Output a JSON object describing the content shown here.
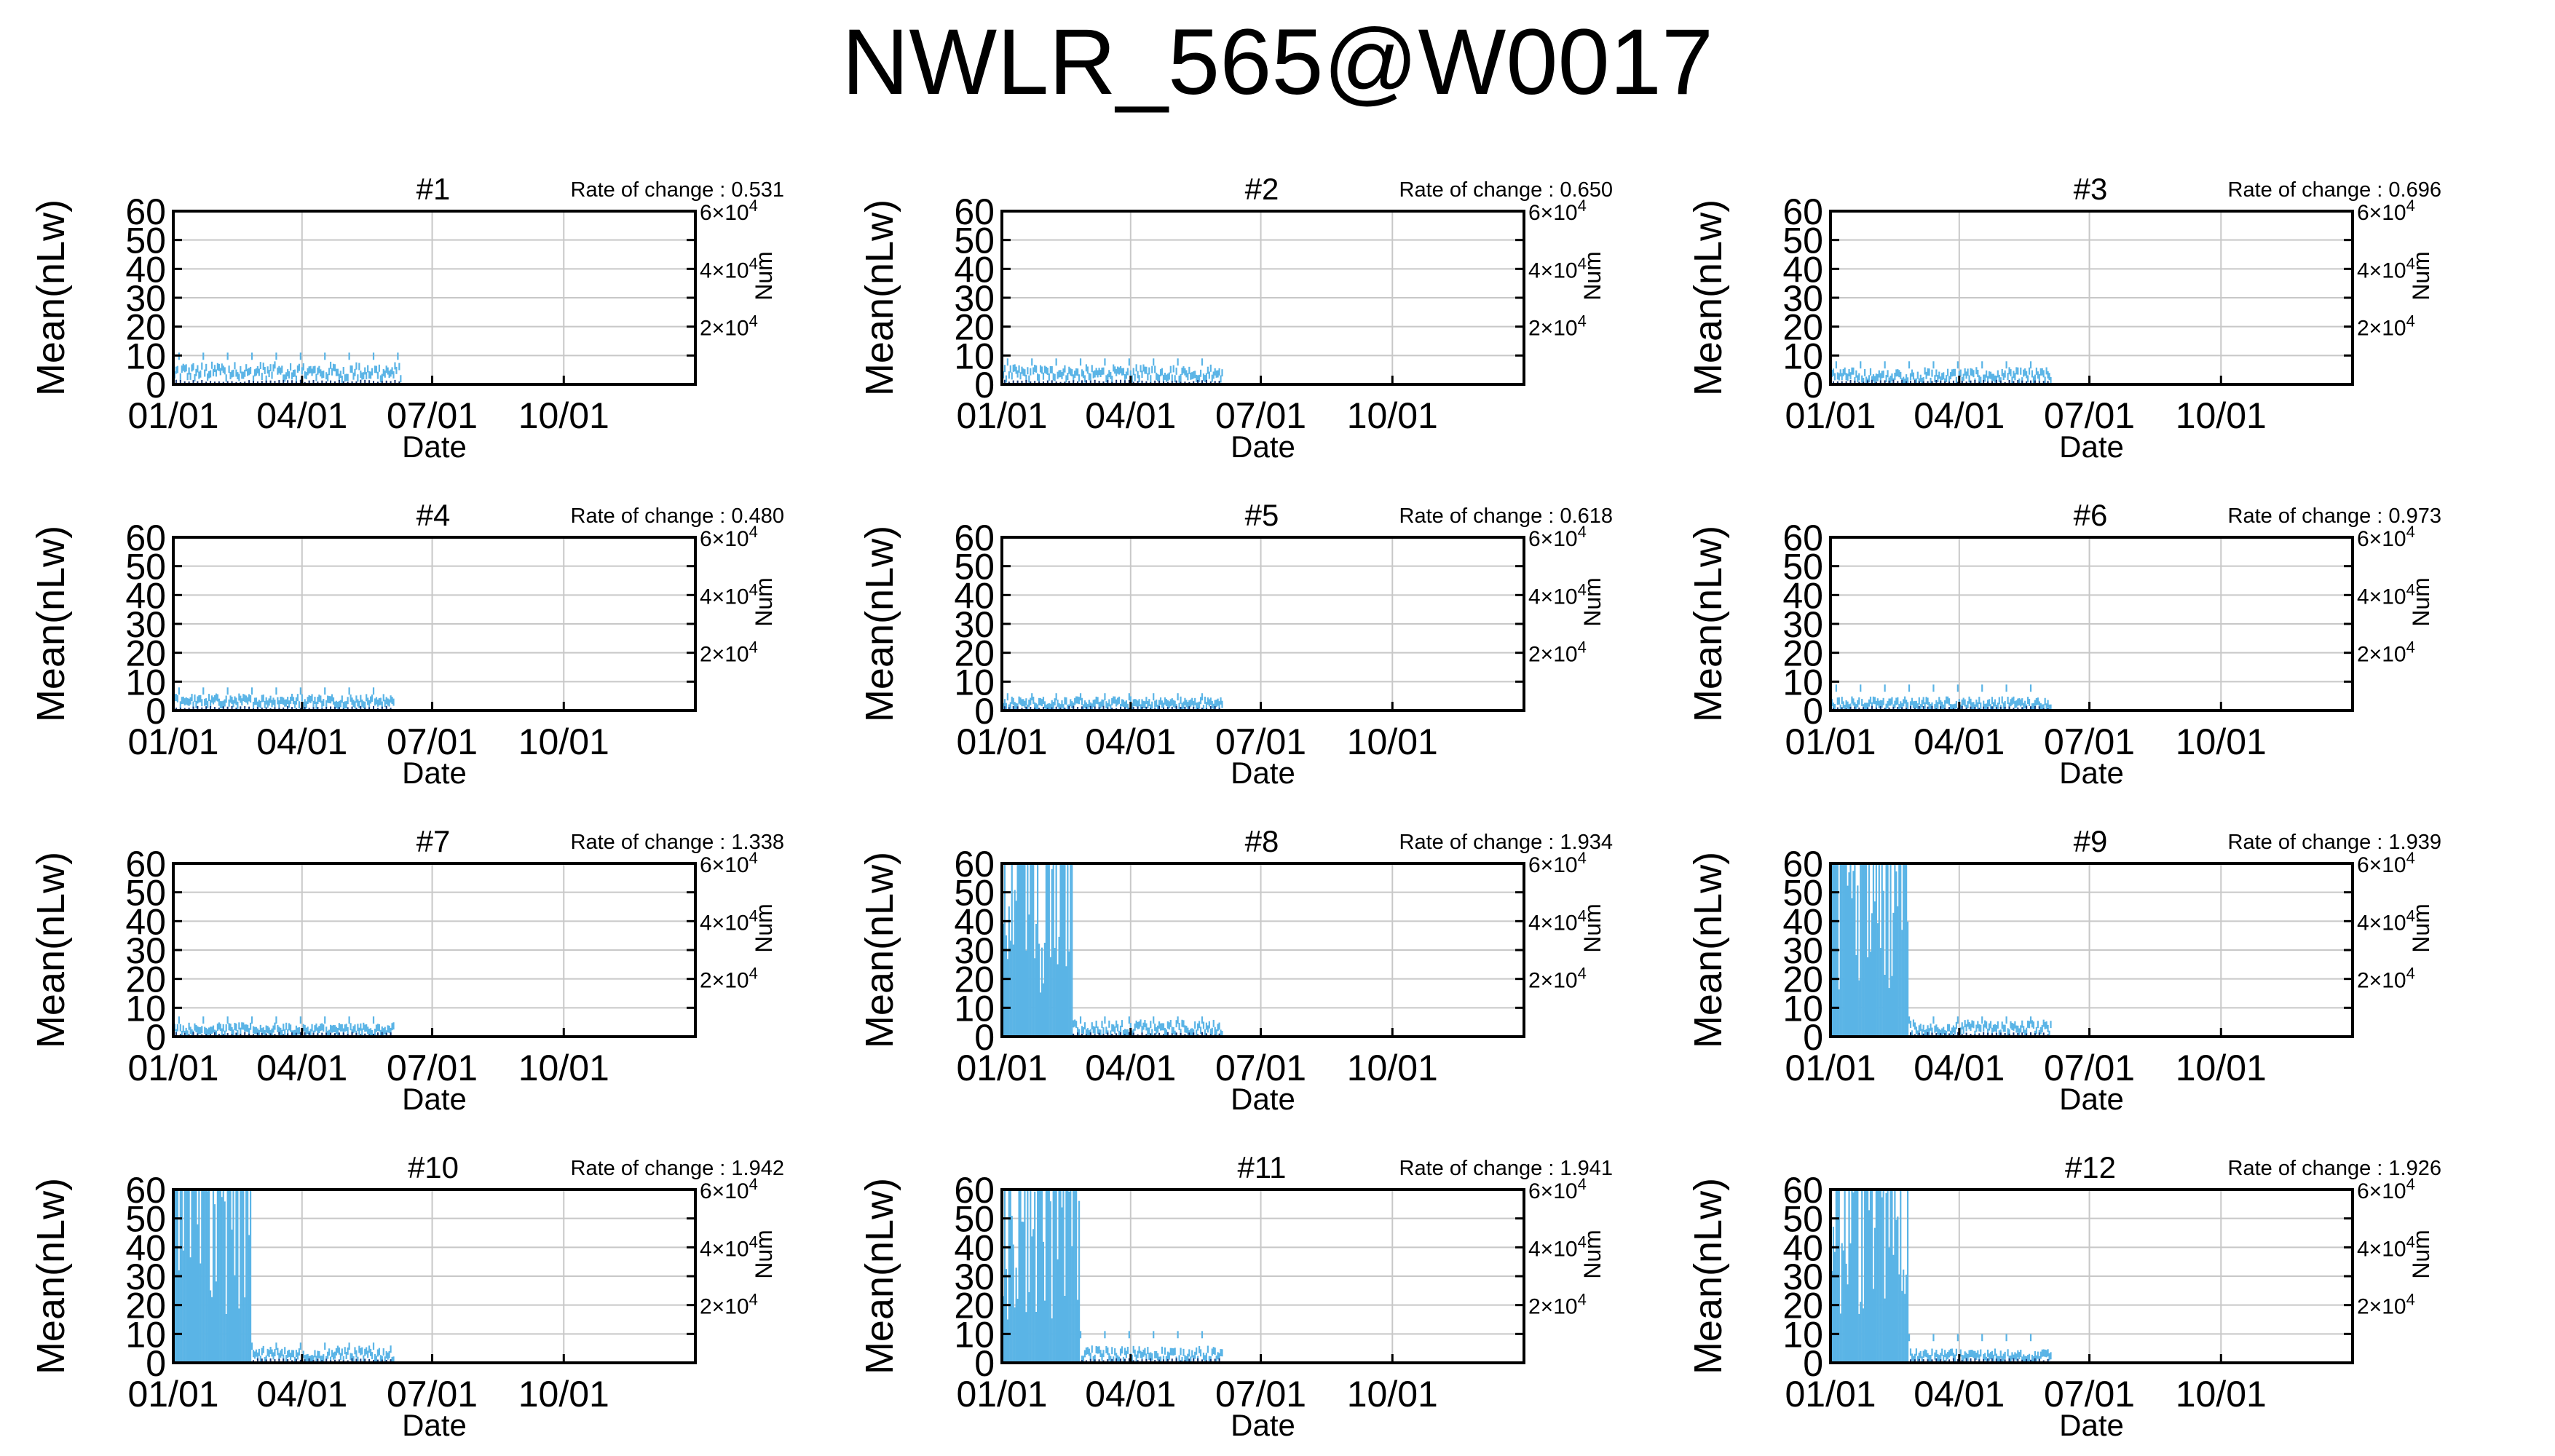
{
  "title": "NWLR_565@W0017",
  "shared": {
    "ylabel": "Mean(nLw)",
    "y2label": "Num",
    "xlabel": "Date",
    "xticks": [
      "01/01",
      "04/01",
      "07/01",
      "10/01"
    ],
    "yticks": [
      0,
      10,
      20,
      30,
      40,
      50,
      60
    ],
    "y2ticks": [
      "2×10⁴",
      "4×10⁴",
      "6×10⁴"
    ],
    "rate_prefix": "Rate of change : "
  },
  "colors": {
    "series": "#5ab4e6",
    "count": "#1a3a78",
    "grid": "#c8c8c8"
  },
  "chart_data": [
    {
      "type": "bar",
      "title": "#1",
      "rate": "0.531",
      "xlabel": "Date",
      "ylabel": "Mean(nLw)",
      "y2label": "Num",
      "xlim": [
        "01/01",
        "12/31"
      ],
      "ylim": [
        0,
        60
      ],
      "y2lim": [
        0,
        60000
      ],
      "grid": true,
      "series": [
        {
          "values": [
            {
              "from": "01/01",
              "to": "06/10",
              "typical_min": 3,
              "typical_max": 8,
              "max": 11
            }
          ]
        }
      ]
    },
    {
      "type": "bar",
      "title": "#2",
      "rate": "0.650",
      "xlabel": "Date",
      "ylabel": "Mean(nLw)",
      "y2label": "Num",
      "xlim": [
        "01/01",
        "12/31"
      ],
      "ylim": [
        0,
        60
      ],
      "y2lim": [
        0,
        60000
      ],
      "grid": true,
      "series": [
        {
          "values": [
            {
              "from": "01/01",
              "to": "06/05",
              "typical_min": 3,
              "typical_max": 7,
              "max": 9
            }
          ]
        }
      ]
    },
    {
      "type": "bar",
      "title": "#3",
      "rate": "0.696",
      "xlabel": "Date",
      "ylabel": "Mean(nLw)",
      "y2label": "Num",
      "xlim": [
        "01/01",
        "12/31"
      ],
      "ylim": [
        0,
        60
      ],
      "y2lim": [
        0,
        60000
      ],
      "grid": true,
      "series": [
        {
          "values": [
            {
              "from": "01/01",
              "to": "06/05",
              "typical_min": 2,
              "typical_max": 6,
              "max": 8
            }
          ]
        }
      ]
    },
    {
      "type": "bar",
      "title": "#4",
      "rate": "0.480",
      "xlabel": "Date",
      "ylabel": "Mean(nLw)",
      "y2label": "Num",
      "xlim": [
        "01/01",
        "12/31"
      ],
      "ylim": [
        0,
        60
      ],
      "y2lim": [
        0,
        60000
      ],
      "grid": true,
      "series": [
        {
          "values": [
            {
              "from": "01/01",
              "to": "06/05",
              "typical_min": 3,
              "typical_max": 6,
              "max": 8
            }
          ]
        }
      ]
    },
    {
      "type": "bar",
      "title": "#5",
      "rate": "0.618",
      "xlabel": "Date",
      "ylabel": "Mean(nLw)",
      "y2label": "Num",
      "xlim": [
        "01/01",
        "12/31"
      ],
      "ylim": [
        0,
        60
      ],
      "y2lim": [
        0,
        60000
      ],
      "grid": true,
      "series": [
        {
          "values": [
            {
              "from": "01/01",
              "to": "06/05",
              "typical_min": 2,
              "typical_max": 5,
              "max": 6
            }
          ]
        }
      ]
    },
    {
      "type": "bar",
      "title": "#6",
      "rate": "0.973",
      "xlabel": "Date",
      "ylabel": "Mean(nLw)",
      "y2label": "Num",
      "xlim": [
        "01/01",
        "12/31"
      ],
      "ylim": [
        0,
        60
      ],
      "y2lim": [
        0,
        60000
      ],
      "grid": true,
      "series": [
        {
          "values": [
            {
              "from": "01/01",
              "to": "06/05",
              "typical_min": 2,
              "typical_max": 5,
              "max": 9
            }
          ]
        }
      ]
    },
    {
      "type": "bar",
      "title": "#7",
      "rate": "1.338",
      "xlabel": "Date",
      "ylabel": "Mean(nLw)",
      "y2label": "Num",
      "xlim": [
        "01/01",
        "12/31"
      ],
      "ylim": [
        0,
        60
      ],
      "y2lim": [
        0,
        60000
      ],
      "grid": true,
      "series": [
        {
          "values": [
            {
              "from": "01/01",
              "to": "06/05",
              "typical_min": 2,
              "typical_max": 5,
              "max": 7
            }
          ]
        }
      ]
    },
    {
      "type": "bar",
      "title": "#8",
      "rate": "1.934",
      "xlabel": "Date",
      "ylabel": "Mean(nLw)",
      "y2label": "Num",
      "xlim": [
        "01/01",
        "12/31"
      ],
      "ylim": [
        0,
        60
      ],
      "y2lim": [
        0,
        60000
      ],
      "grid": true,
      "series": [
        {
          "values": [
            {
              "from": "01/01",
              "to": "02/20",
              "typical_min": 0,
              "typical_max": 60,
              "max": 60
            },
            {
              "from": "02/20",
              "to": "06/05",
              "typical_min": 2,
              "typical_max": 6,
              "max": 7
            }
          ]
        }
      ]
    },
    {
      "type": "bar",
      "title": "#9",
      "rate": "1.939",
      "xlabel": "Date",
      "ylabel": "Mean(nLw)",
      "y2label": "Num",
      "xlim": [
        "01/01",
        "12/31"
      ],
      "ylim": [
        0,
        60
      ],
      "y2lim": [
        0,
        60000
      ],
      "grid": true,
      "series": [
        {
          "values": [
            {
              "from": "01/01",
              "to": "02/25",
              "typical_min": 0,
              "typical_max": 60,
              "max": 60
            },
            {
              "from": "02/25",
              "to": "06/05",
              "typical_min": 2,
              "typical_max": 6,
              "max": 7
            }
          ]
        }
      ]
    },
    {
      "type": "bar",
      "title": "#10",
      "rate": "1.942",
      "xlabel": "Date",
      "ylabel": "Mean(nLw)",
      "y2label": "Num",
      "xlim": [
        "01/01",
        "12/31"
      ],
      "ylim": [
        0,
        60
      ],
      "y2lim": [
        0,
        60000
      ],
      "grid": true,
      "series": [
        {
          "values": [
            {
              "from": "01/01",
              "to": "02/25",
              "typical_min": 0,
              "typical_max": 60,
              "max": 60
            },
            {
              "from": "02/25",
              "to": "06/05",
              "typical_min": 2,
              "typical_max": 6,
              "max": 7
            }
          ]
        }
      ]
    },
    {
      "type": "bar",
      "title": "#11",
      "rate": "1.941",
      "xlabel": "Date",
      "ylabel": "Mean(nLw)",
      "y2label": "Num",
      "xlim": [
        "01/01",
        "12/31"
      ],
      "ylim": [
        0,
        60
      ],
      "y2lim": [
        0,
        60000
      ],
      "grid": true,
      "series": [
        {
          "values": [
            {
              "from": "01/01",
              "to": "02/25",
              "typical_min": 0,
              "typical_max": 60,
              "max": 60
            },
            {
              "from": "02/25",
              "to": "06/05",
              "typical_min": 2,
              "typical_max": 6,
              "max": 11
            }
          ]
        }
      ]
    },
    {
      "type": "bar",
      "title": "#12",
      "rate": "1.926",
      "xlabel": "Date",
      "ylabel": "Mean(nLw)",
      "y2label": "Num",
      "xlim": [
        "01/01",
        "12/31"
      ],
      "ylim": [
        0,
        60
      ],
      "y2lim": [
        0,
        60000
      ],
      "grid": true,
      "series": [
        {
          "values": [
            {
              "from": "01/01",
              "to": "02/25",
              "typical_min": 0,
              "typical_max": 60,
              "max": 60
            },
            {
              "from": "02/25",
              "to": "06/05",
              "typical_min": 2,
              "typical_max": 5,
              "max": 10
            }
          ]
        }
      ]
    }
  ]
}
